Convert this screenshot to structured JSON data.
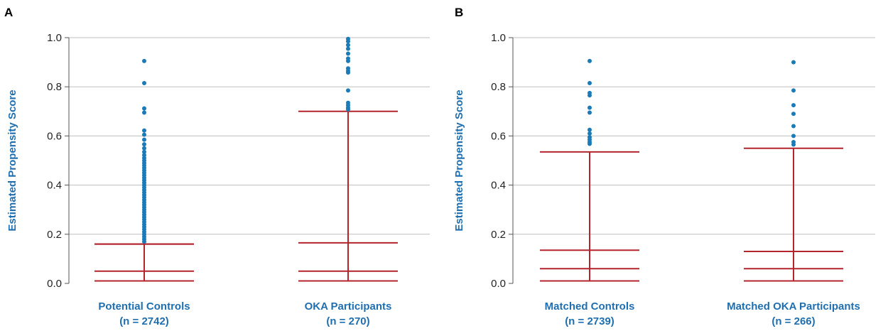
{
  "chart_data": [
    {
      "panel": "A",
      "type": "box",
      "ylabel": "Estimated Propensity Score",
      "ylim": [
        0,
        1
      ],
      "yticks": [
        "0.0",
        "0.2",
        "0.4",
        "0.6",
        "0.8",
        "1.0"
      ],
      "grid": true,
      "colors": {
        "box": "#b3242d",
        "outlier": "#1a7bb8",
        "label": "#1f6fb0"
      },
      "categories": [
        {
          "name": "Potential Controls",
          "n": "(n = 2742)",
          "min": 0.01,
          "q1": 0.05,
          "median": 0.05,
          "q3": 0.16,
          "max": 0.16,
          "outliers": [
            0.905,
            0.815,
            0.712,
            0.695,
            0.622,
            0.605,
            0.585,
            0.566,
            0.55,
            0.535,
            0.522,
            0.51,
            0.5,
            0.49,
            0.48,
            0.47,
            0.46,
            0.45,
            0.44,
            0.43,
            0.42,
            0.41,
            0.4,
            0.39,
            0.38,
            0.37,
            0.36,
            0.35,
            0.34,
            0.33,
            0.32,
            0.31,
            0.3,
            0.29,
            0.28,
            0.27,
            0.26,
            0.25,
            0.24,
            0.23,
            0.22,
            0.21,
            0.2,
            0.19,
            0.18,
            0.17
          ]
        },
        {
          "name": "OKA Participants",
          "n": "(n = 270)",
          "min": 0.01,
          "q1": 0.05,
          "median": 0.05,
          "q3": 0.165,
          "max": 0.7,
          "outliers": [
            0.995,
            0.985,
            0.97,
            0.955,
            0.935,
            0.915,
            0.905,
            0.875,
            0.865,
            0.858,
            0.785,
            0.735,
            0.725,
            0.715,
            0.708
          ]
        }
      ]
    },
    {
      "panel": "B",
      "type": "box",
      "ylabel": "Estimated Propensity Score",
      "ylim": [
        0,
        1
      ],
      "yticks": [
        "0.0",
        "0.2",
        "0.4",
        "0.6",
        "0.8",
        "1.0"
      ],
      "grid": true,
      "colors": {
        "box": "#b3242d",
        "outlier": "#1a7bb8",
        "label": "#1f6fb0"
      },
      "categories": [
        {
          "name": "Matched Controls",
          "n": "(n = 2739)",
          "min": 0.01,
          "q1": 0.06,
          "median": 0.06,
          "q3": 0.135,
          "max": 0.535,
          "outliers": [
            0.905,
            0.815,
            0.775,
            0.765,
            0.715,
            0.695,
            0.625,
            0.61,
            0.595,
            0.585,
            0.575,
            0.568
          ]
        },
        {
          "name": "Matched OKA Participants",
          "n": "(n = 266)",
          "min": 0.01,
          "q1": 0.06,
          "median": 0.06,
          "q3": 0.13,
          "max": 0.55,
          "outliers": [
            0.9,
            0.785,
            0.725,
            0.69,
            0.64,
            0.6,
            0.575,
            0.565
          ]
        }
      ]
    }
  ]
}
